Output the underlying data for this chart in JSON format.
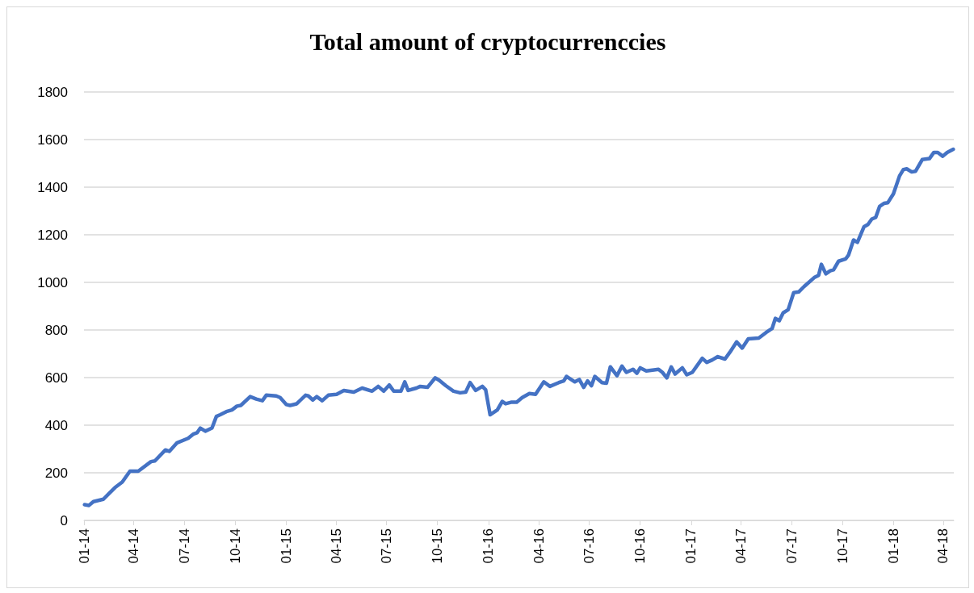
{
  "chart_data": {
    "type": "line",
    "title": "Total amount of cryptocurrenccies",
    "xlim": [
      "2014-01-01",
      "2018-04-20"
    ],
    "xticks": [
      {
        "value": "2014-01-01",
        "label": "01-14"
      },
      {
        "value": "2014-04-01",
        "label": "04-14"
      },
      {
        "value": "2014-07-01",
        "label": "07-14"
      },
      {
        "value": "2014-10-01",
        "label": "10-14"
      },
      {
        "value": "2015-01-01",
        "label": "01-15"
      },
      {
        "value": "2015-04-01",
        "label": "04-15"
      },
      {
        "value": "2015-07-01",
        "label": "07-15"
      },
      {
        "value": "2015-10-01",
        "label": "10-15"
      },
      {
        "value": "2016-01-01",
        "label": "01-16"
      },
      {
        "value": "2016-04-01",
        "label": "04-16"
      },
      {
        "value": "2016-07-01",
        "label": "07-16"
      },
      {
        "value": "2016-10-01",
        "label": "10-16"
      },
      {
        "value": "2017-01-01",
        "label": "01-17"
      },
      {
        "value": "2017-04-01",
        "label": "04-17"
      },
      {
        "value": "2017-07-01",
        "label": "07-17"
      },
      {
        "value": "2017-10-01",
        "label": "10-17"
      },
      {
        "value": "2018-01-01",
        "label": "01-18"
      },
      {
        "value": "2018-04-01",
        "label": "04-18"
      }
    ],
    "ylim": [
      0,
      1800
    ],
    "yticks": [
      0,
      200,
      400,
      600,
      800,
      1000,
      1200,
      1400,
      1600,
      1800
    ],
    "grid": "y",
    "marker": "none",
    "line_style": "solid",
    "x": [
      "2014-01-02",
      "2014-01-10",
      "2014-01-18",
      "2014-02-05",
      "2014-02-16",
      "2014-02-26",
      "2014-03-11",
      "2014-03-25",
      "2014-04-09",
      "2014-05-02",
      "2014-05-09",
      "2014-05-28",
      "2014-06-04",
      "2014-06-18",
      "2014-07-08",
      "2014-07-17",
      "2014-07-24",
      "2014-07-30",
      "2014-08-08",
      "2014-08-20",
      "2014-08-28",
      "2014-09-04",
      "2014-09-15",
      "2014-09-25",
      "2014-10-04",
      "2014-10-11",
      "2014-10-28",
      "2014-11-08",
      "2014-11-19",
      "2014-11-26",
      "2014-12-14",
      "2014-12-21",
      "2015-01-01",
      "2015-01-08",
      "2015-01-20",
      "2015-01-27",
      "2015-02-05",
      "2015-02-10",
      "2015-02-18",
      "2015-02-25",
      "2015-03-07",
      "2015-03-18",
      "2015-04-02",
      "2015-04-15",
      "2015-05-03",
      "2015-05-18",
      "2015-06-05",
      "2015-06-16",
      "2015-06-26",
      "2015-07-06",
      "2015-07-14",
      "2015-07-27",
      "2015-08-03",
      "2015-08-09",
      "2015-08-24",
      "2015-08-31",
      "2015-09-13",
      "2015-09-27",
      "2015-10-04",
      "2015-10-16",
      "2015-10-30",
      "2015-11-11",
      "2015-11-21",
      "2015-11-29",
      "2015-12-09",
      "2015-12-21",
      "2015-12-27",
      "2016-01-04",
      "2016-01-17",
      "2016-01-26",
      "2016-02-01",
      "2016-02-12",
      "2016-02-21",
      "2016-03-02",
      "2016-03-15",
      "2016-03-26",
      "2016-04-10",
      "2016-04-21",
      "2016-05-07",
      "2016-05-16",
      "2016-05-21",
      "2016-06-05",
      "2016-06-13",
      "2016-06-21",
      "2016-06-28",
      "2016-07-05",
      "2016-07-11",
      "2016-07-24",
      "2016-08-01",
      "2016-08-08",
      "2016-08-20",
      "2016-08-29",
      "2016-09-06",
      "2016-09-18",
      "2016-09-25",
      "2016-10-01",
      "2016-10-12",
      "2016-11-03",
      "2016-11-10",
      "2016-11-18",
      "2016-11-26",
      "2016-12-03",
      "2016-12-16",
      "2016-12-24",
      "2017-01-03",
      "2017-01-21",
      "2017-01-29",
      "2017-02-08",
      "2017-02-18",
      "2017-03-03",
      "2017-03-12",
      "2017-03-24",
      "2017-04-03",
      "2017-04-14",
      "2017-05-03",
      "2017-05-16",
      "2017-05-27",
      "2017-06-02",
      "2017-06-09",
      "2017-06-16",
      "2017-06-25",
      "2017-07-05",
      "2017-07-14",
      "2017-07-24",
      "2017-08-11",
      "2017-08-19",
      "2017-08-24",
      "2017-09-01",
      "2017-09-09",
      "2017-09-15",
      "2017-09-24",
      "2017-10-07",
      "2017-10-12",
      "2017-10-21",
      "2017-10-28",
      "2017-11-09",
      "2017-11-16",
      "2017-11-23",
      "2017-11-30",
      "2017-12-07",
      "2017-12-15",
      "2017-12-22",
      "2018-01-01",
      "2018-01-12",
      "2018-01-19",
      "2018-01-25",
      "2018-02-03",
      "2018-02-10",
      "2018-02-22",
      "2018-03-07",
      "2018-03-15",
      "2018-03-22",
      "2018-03-31",
      "2018-04-08",
      "2018-04-19"
    ],
    "series": [
      {
        "color": "#4472c4",
        "values": [
          66,
          63,
          79,
          89,
          115,
          138,
          161,
          207,
          207,
          247,
          250,
          296,
          290,
          326,
          345,
          362,
          368,
          388,
          375,
          388,
          437,
          444,
          457,
          464,
          480,
          483,
          520,
          510,
          503,
          526,
          523,
          516,
          487,
          483,
          490,
          506,
          526,
          523,
          506,
          520,
          503,
          526,
          530,
          546,
          539,
          556,
          543,
          563,
          543,
          569,
          543,
          543,
          582,
          546,
          556,
          563,
          559,
          599,
          589,
          566,
          543,
          536,
          539,
          579,
          546,
          563,
          549,
          444,
          464,
          500,
          490,
          497,
          497,
          516,
          533,
          530,
          582,
          563,
          579,
          586,
          605,
          582,
          592,
          559,
          586,
          566,
          605,
          579,
          576,
          645,
          608,
          648,
          622,
          635,
          618,
          641,
          628,
          635,
          622,
          599,
          645,
          615,
          641,
          612,
          622,
          681,
          664,
          674,
          688,
          678,
          707,
          750,
          724,
          763,
          766,
          789,
          806,
          849,
          839,
          872,
          885,
          957,
          960,
          983,
          1020,
          1030,
          1076,
          1036,
          1049,
          1053,
          1089,
          1099,
          1115,
          1178,
          1168,
          1234,
          1243,
          1266,
          1273,
          1319,
          1332,
          1335,
          1372,
          1447,
          1474,
          1477,
          1464,
          1467,
          1516,
          1520,
          1546,
          1546,
          1530,
          1546,
          1559
        ]
      }
    ]
  }
}
